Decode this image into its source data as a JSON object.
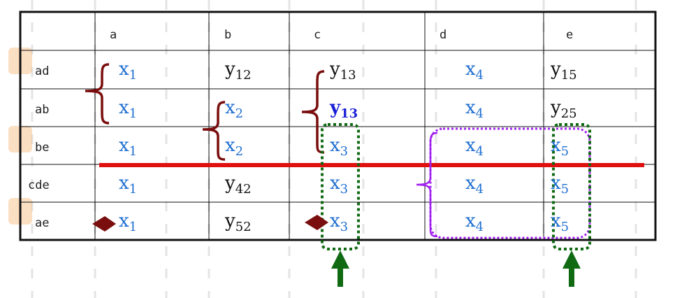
{
  "columns": [
    "a",
    "b",
    "c",
    "d",
    "e"
  ],
  "rows": [
    {
      "label": "ad",
      "cells": [
        {
          "base": "x",
          "sub": "1",
          "color": "blue"
        },
        {
          "base": "y",
          "sub": "12",
          "color": "black"
        },
        {
          "base": "y",
          "sub": "13",
          "color": "black"
        },
        {
          "base": "x",
          "sub": "4",
          "color": "blue"
        },
        {
          "base": "y",
          "sub": "15",
          "color": "black"
        }
      ]
    },
    {
      "label": "ab",
      "cells": [
        {
          "base": "x",
          "sub": "1",
          "color": "blue"
        },
        {
          "base": "x",
          "sub": "2",
          "color": "blue"
        },
        {
          "base": "y",
          "sub": "13",
          "color": "navy"
        },
        {
          "base": "x",
          "sub": "4",
          "color": "blue"
        },
        {
          "base": "y",
          "sub": "25",
          "color": "black"
        }
      ]
    },
    {
      "label": "be",
      "cells": [
        {
          "base": "x",
          "sub": "1",
          "color": "blue"
        },
        {
          "base": "x",
          "sub": "2",
          "color": "blue"
        },
        {
          "base": "x",
          "sub": "3",
          "color": "blue"
        },
        {
          "base": "x",
          "sub": "4",
          "color": "blue"
        },
        {
          "base": "x",
          "sub": "5",
          "color": "blue"
        }
      ]
    },
    {
      "label": "cde",
      "cells": [
        {
          "base": "x",
          "sub": "1",
          "color": "blue"
        },
        {
          "base": "y",
          "sub": "42",
          "color": "black"
        },
        {
          "base": "x",
          "sub": "3",
          "color": "blue"
        },
        {
          "base": "x",
          "sub": "4",
          "color": "blue"
        },
        {
          "base": "x",
          "sub": "5",
          "color": "blue"
        }
      ]
    },
    {
      "label": "ae",
      "cells": [
        {
          "base": "x",
          "sub": "1",
          "color": "blue"
        },
        {
          "base": "y",
          "sub": "52",
          "color": "black"
        },
        {
          "base": "x",
          "sub": "3",
          "color": "blue"
        },
        {
          "base": "x",
          "sub": "4",
          "color": "blue"
        },
        {
          "base": "x",
          "sub": "5",
          "color": "blue"
        }
      ]
    }
  ],
  "colors": {
    "blue": "#1f6fd1",
    "navy": "#1a1fd6",
    "black": "#111111",
    "brace": "#7a0e0e",
    "divider": "#e01010",
    "group_box": "#0f6a12",
    "d_box": "#a020f0",
    "arrow": "#0f6a12",
    "diamond": "#7a0e0e",
    "watermark": "#f2a14a"
  },
  "icons": [
    "curly-brace",
    "diamond-marker",
    "up-arrow",
    "dotted-box",
    "watermark-stamp"
  ]
}
